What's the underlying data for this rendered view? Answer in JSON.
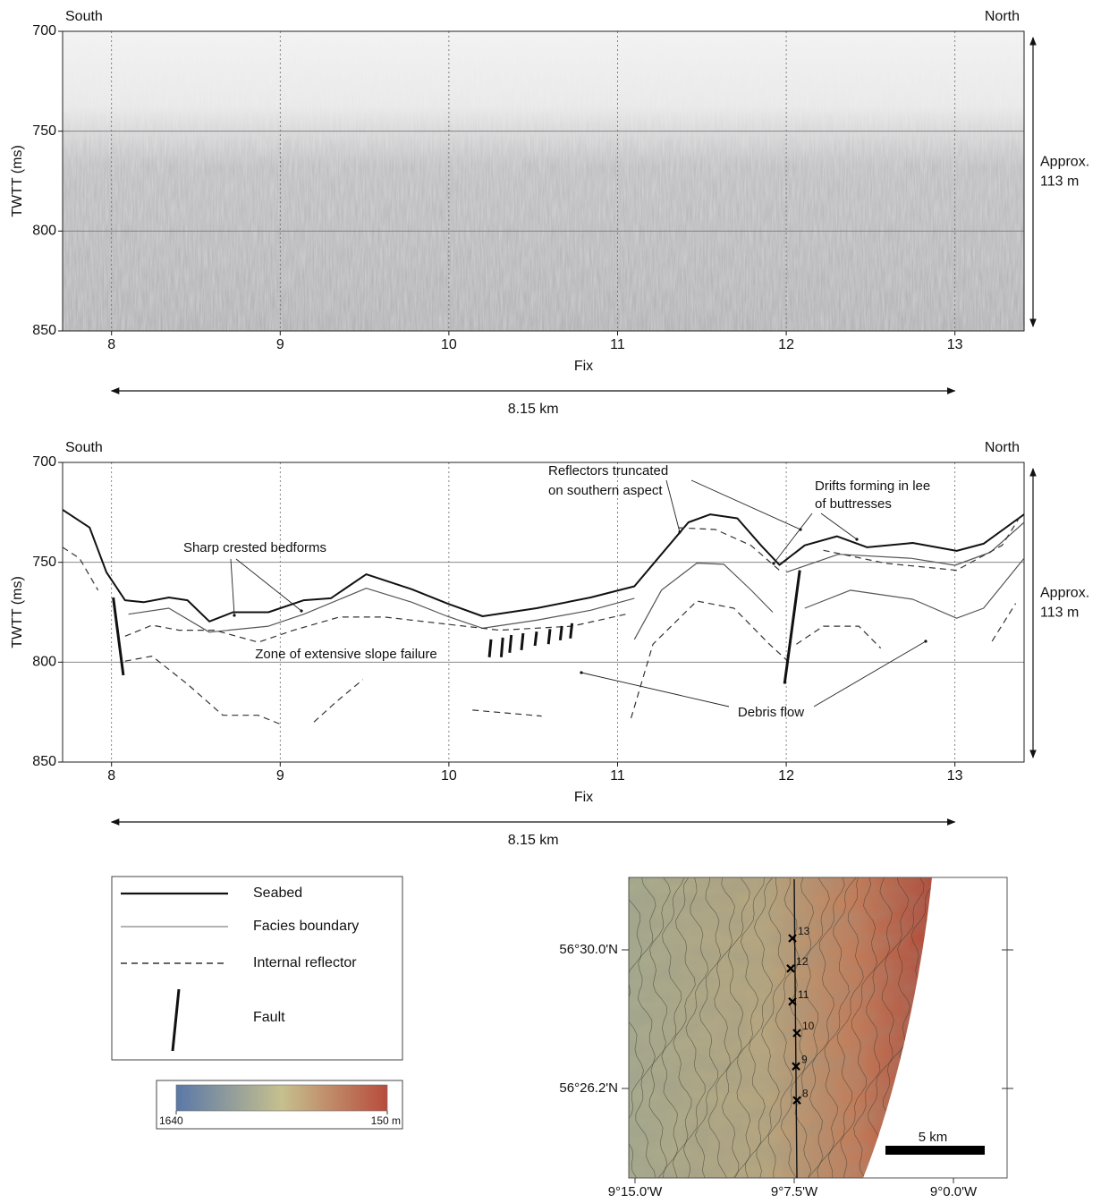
{
  "chart_data": [
    {
      "type": "seismic",
      "left_label": "South",
      "right_label": "North",
      "ylabel": "TWTT (ms)",
      "xlabel": "Fix",
      "scale_label": [
        "Approx.",
        "113 m"
      ],
      "distance_label": "8.15 km",
      "xlim": [
        7.71,
        13.41
      ],
      "xticks": [
        8,
        9,
        10,
        11,
        12,
        13
      ],
      "ylim": [
        700,
        850
      ],
      "yticks": [
        700,
        750,
        800,
        850
      ],
      "y_inverted": true,
      "grid": true
    },
    {
      "type": "line",
      "left_label": "South",
      "right_label": "North",
      "ylabel": "TWTT (ms)",
      "xlabel": "Fix",
      "scale_label": [
        "Approx.",
        "113 m"
      ],
      "distance_label": "8.15 km",
      "xlim": [
        7.71,
        13.41
      ],
      "xticks": [
        8,
        9,
        10,
        11,
        12,
        13
      ],
      "ylim": [
        700,
        850
      ],
      "yticks": [
        700,
        750,
        800,
        850
      ],
      "y_inverted": true,
      "grid": true,
      "annotations": [
        {
          "lines": [
            "Sharp crested bedforms"
          ]
        },
        {
          "lines": [
            "Zone of extensive slope failure"
          ]
        },
        {
          "lines": [
            "Reflectors truncated",
            "on southern aspect"
          ]
        },
        {
          "lines": [
            "Drifts forming in lee",
            "of buttresses"
          ]
        },
        {
          "lines": [
            "Debris flow"
          ]
        }
      ],
      "series": [
        {
          "name": "Seabed",
          "color": "#111111",
          "line_width": 2,
          "dashed": false,
          "x": [
            7.71,
            7.87,
            7.97,
            8.08,
            8.19,
            8.34,
            8.45,
            8.58,
            8.72,
            8.93,
            9.14,
            9.3,
            9.51,
            9.78,
            9.99,
            10.2,
            10.52,
            10.84,
            11.1,
            11.26,
            11.42,
            11.55,
            11.71,
            11.85,
            11.96,
            12.11,
            12.3,
            12.48,
            12.75,
            13.01,
            13.17,
            13.41
          ],
          "values": [
            723.7,
            732.6,
            755,
            769,
            770,
            767.6,
            769,
            779.6,
            775,
            775,
            769,
            768,
            756,
            763.5,
            770.6,
            777,
            773,
            767.6,
            762,
            746,
            730,
            726,
            728,
            741.5,
            751.3,
            741.5,
            737,
            742.5,
            740.3,
            744.3,
            740.7,
            726
          ]
        },
        {
          "name": "Facies boundary",
          "color": "#555555",
          "line_width": 1.2,
          "dashed": false,
          "x": [
            8.1,
            8.34,
            8.58,
            8.93,
            9.14,
            9.51,
            9.78,
            9.99,
            10.2,
            10.52,
            10.84,
            11.1,
            null,
            11.1,
            11.26,
            11.47,
            11.63,
            11.79,
            11.92,
            null,
            12.0,
            12.31,
            12.74,
            13.0,
            13.21,
            13.41,
            null,
            12.11,
            12.38,
            12.75,
            13.01,
            13.17,
            13.41
          ],
          "values": [
            776,
            773,
            785,
            782,
            776,
            763,
            770,
            777,
            783,
            779,
            774,
            768,
            null,
            788.6,
            764,
            750.4,
            751,
            763.8,
            775,
            null,
            755,
            746,
            748,
            751.5,
            745,
            730,
            null,
            773,
            764,
            768.5,
            778,
            773,
            748
          ]
        },
        {
          "name": "Internal reflector",
          "color": "#333333",
          "line_width": 1.2,
          "dashed": true,
          "x": [
            7.71,
            7.81,
            7.92,
            null,
            8.08,
            8.24,
            8.4,
            8.61,
            8.87,
            9.08,
            9.35,
            9.62,
            9.99,
            10.3,
            10.73,
            11.05,
            null,
            8.08,
            8.24,
            8.45,
            8.66,
            8.87,
            9.0,
            null,
            9.2,
            9.33,
            9.49,
            null,
            11.08,
            11.21,
            11.47,
            11.69,
            11.9,
            12.01,
            null,
            12.06,
            12.22,
            12.43,
            12.56,
            null,
            11.36,
            11.58,
            11.79,
            11.96,
            null,
            12.22,
            12.59,
            13.01,
            13.28,
            13.38,
            null,
            13.22,
            13.36,
            null,
            10.14,
            10.55
          ],
          "values": [
            742.5,
            748,
            764,
            null,
            787,
            781.5,
            784,
            784,
            790,
            784,
            777.4,
            777.4,
            781,
            784,
            782,
            776,
            null,
            799.5,
            797,
            811,
            826.6,
            826.6,
            831,
            null,
            830,
            820,
            808.7,
            null,
            828,
            791,
            769.4,
            773,
            791,
            799.5,
            null,
            791,
            782,
            782,
            793,
            null,
            732.7,
            733.6,
            741.5,
            754,
            null,
            744,
            750.5,
            754,
            741.5,
            728,
            null,
            789.5,
            770.6,
            null,
            824,
            827
          ]
        },
        {
          "name": "Fault",
          "color": "#111111",
          "line_width": 3,
          "dashed": false,
          "x": [
            8.01,
            8.07,
            null,
            12.08,
            11.99,
            null,
            10.24,
            10.25,
            null,
            10.31,
            10.32,
            null,
            10.36,
            10.37,
            null,
            10.43,
            10.44,
            null,
            10.51,
            10.52,
            null,
            10.59,
            10.6,
            null,
            10.66,
            10.67,
            null,
            10.72,
            10.73
          ],
          "values": [
            767.6,
            806.5,
            null,
            754,
            810.8,
            null,
            797.5,
            788.6,
            null,
            797.5,
            787.7,
            null,
            795.3,
            786.4,
            null,
            794,
            785.5,
            null,
            791.8,
            784.7,
            null,
            791,
            783.4,
            null,
            789,
            781.9,
            null,
            788.1,
            780.5
          ]
        }
      ]
    },
    {
      "type": "colorbar",
      "clim": [
        1640,
        150
      ],
      "ticks": [
        1640,
        {
          "value": 150,
          "label": "150 m"
        }
      ],
      "colors": [
        "#5a78a8",
        "#c6c08e",
        "#b84c3c"
      ]
    },
    {
      "type": "map",
      "xlim": [
        -9.2549,
        -8.9579
      ],
      "ylim": [
        56.3958,
        56.5331
      ],
      "xticks": [
        {
          "value": -9.25,
          "label": "9°15.0'W"
        },
        {
          "value": -9.125,
          "label": "9°7.5'W"
        },
        {
          "value": -9.0,
          "label": "9°0.0'W"
        }
      ],
      "yticks": [
        {
          "value": 56.5,
          "label": "56°30.0'N"
        },
        {
          "value": 56.4367,
          "label": "56°26.2'N"
        }
      ],
      "scale_bar": "5 km",
      "stations": [
        {
          "label": 8,
          "lon": -9.1229,
          "lat": 56.4313
        },
        {
          "label": 9,
          "lon": -9.1236,
          "lat": 56.4468
        },
        {
          "label": 10,
          "lon": -9.1229,
          "lat": 56.462
        },
        {
          "label": 11,
          "lon": -9.1264,
          "lat": 56.4764
        },
        {
          "label": 12,
          "lon": -9.1278,
          "lat": 56.4915
        },
        {
          "label": 13,
          "lon": -9.1264,
          "lat": 56.5053
        }
      ]
    }
  ]
}
